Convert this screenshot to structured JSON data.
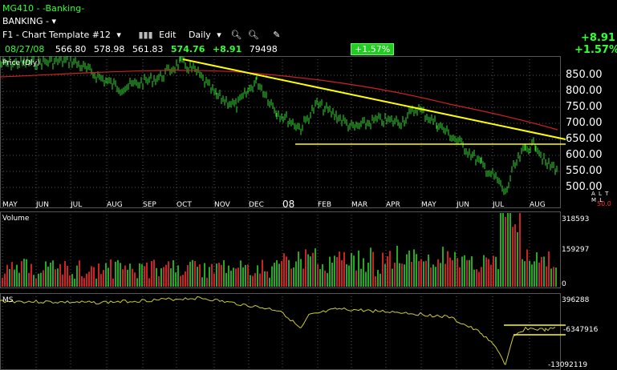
{
  "header": {
    "title": "MG410 - -Banking-",
    "subtitle": "BANKING -",
    "template": "F1 - Chart Template #12",
    "edit_label": "Edit",
    "period_label": "Daily",
    "change_abs": "+8.91",
    "change_pct": "+1.57%"
  },
  "quote": {
    "date": "08/27/08",
    "open": "566.80",
    "high": "578.98",
    "low": "561.83",
    "close": "574.76",
    "change": "+8.91",
    "volume": "79498",
    "badge": "+1.57%"
  },
  "price_panel": {
    "label": "Price (Dly)",
    "y_ticks": [
      "850.00",
      "800.00",
      "750.00",
      "700.00",
      "650.00",
      "600.00",
      "550.00",
      "500.00"
    ],
    "side_letters": "A L T M L",
    "side_value": "50.0"
  },
  "months": [
    "MAY",
    "JUN",
    "JUL",
    "AUG",
    "SEP",
    "OCT",
    "NOV",
    "DEC",
    "08",
    "FEB",
    "MAR",
    "APR",
    "MAY",
    "JUN",
    "JUL",
    "AUG"
  ],
  "volume_panel": {
    "label": "Volume",
    "ticks": [
      "318593",
      "159297",
      "0"
    ]
  },
  "ms_panel": {
    "label": "MS",
    "ticks": [
      "396288",
      "-6347916",
      "-13092119"
    ]
  },
  "colors": {
    "price": "#33dd33",
    "ma": "#cc2222",
    "trend": "#ffff00",
    "vol_up": "#22aa22",
    "vol_down": "#cc2222",
    "ms_line": "#cccc33"
  },
  "icons": [
    "chart-bars-icon",
    "dropdown-icon",
    "zoom-in-icon",
    "zoom-out-icon",
    "pen-tool-icon"
  ]
}
